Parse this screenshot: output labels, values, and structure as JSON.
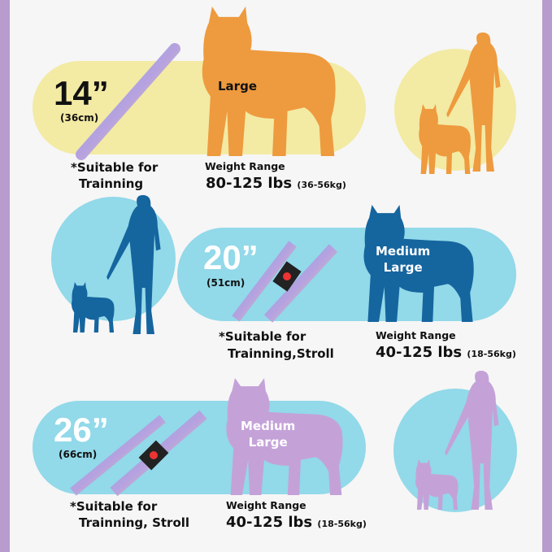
{
  "colors": {
    "border": "#b79ccd",
    "yellow": "#f3eaa4",
    "blue": "#92d9e9",
    "orange": "#ee9a3e",
    "dark_blue": "#15659f",
    "purple": "#c4a2d8"
  },
  "sections": [
    {
      "length": "14”",
      "length_cm": "(36cm)",
      "size": "Large",
      "suitable": "*Suitable for",
      "use": "Trainning",
      "weight_label": "Weight Range",
      "weight": "80-125 lbs",
      "weight_kg": "(36-56kg)"
    },
    {
      "length": "20”",
      "length_cm": "(51cm)",
      "size_line1": "Medium",
      "size_line2": "Large",
      "suitable": "*Suitable for",
      "use": "Trainning,Stroll",
      "weight_label": "Weight Range",
      "weight": "40-125 lbs",
      "weight_kg": "(18-56kg)"
    },
    {
      "length": "26”",
      "length_cm": "(66cm)",
      "size_line1": "Medium",
      "size_line2": "Large",
      "suitable": "*Suitable for",
      "use": "Trainning, Stroll",
      "weight_label": "Weight Range",
      "weight": "40-125 lbs",
      "weight_kg": "(18-56kg)"
    }
  ]
}
